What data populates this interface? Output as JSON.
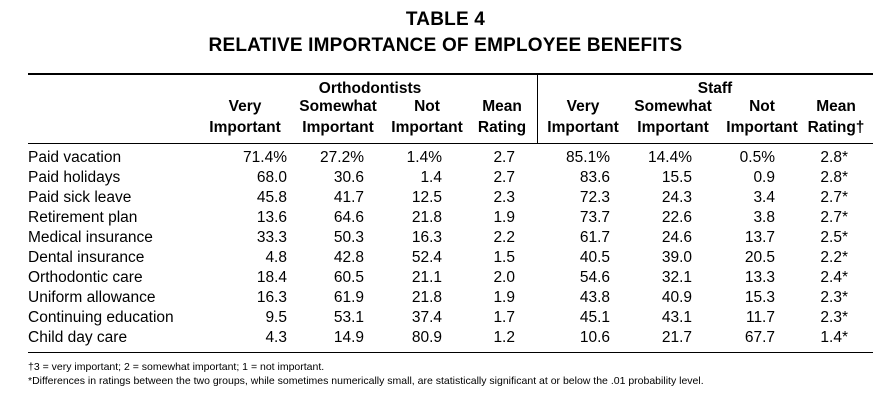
{
  "title": "TABLE 4",
  "subtitle": "RELATIVE IMPORTANCE OF EMPLOYEE BENEFITS",
  "groups": {
    "left": "Orthodontists",
    "right": "Staff"
  },
  "col_headers": {
    "very_1": "Very",
    "very_2": "Important",
    "some_1": "Somewhat",
    "some_2": "Important",
    "not_1": "Not",
    "not_2": "Important",
    "mean_1": "Mean",
    "mean_2": "Rating",
    "mean_staff_2": "Rating†"
  },
  "rows": [
    {
      "label": "Paid vacation",
      "o": [
        "71.4%",
        "27.2%",
        "1.4%",
        "2.7"
      ],
      "s": [
        "85.1%",
        "14.4%",
        "0.5%",
        "2.8*"
      ]
    },
    {
      "label": "Paid holidays",
      "o": [
        "68.0",
        "30.6",
        "1.4",
        "2.7"
      ],
      "s": [
        "83.6",
        "15.5",
        "0.9",
        "2.8*"
      ]
    },
    {
      "label": "Paid sick leave",
      "o": [
        "45.8",
        "41.7",
        "12.5",
        "2.3"
      ],
      "s": [
        "72.3",
        "24.3",
        "3.4",
        "2.7*"
      ]
    },
    {
      "label": "Retirement plan",
      "o": [
        "13.6",
        "64.6",
        "21.8",
        "1.9"
      ],
      "s": [
        "73.7",
        "22.6",
        "3.8",
        "2.7*"
      ]
    },
    {
      "label": "Medical insurance",
      "o": [
        "33.3",
        "50.3",
        "16.3",
        "2.2"
      ],
      "s": [
        "61.7",
        "24.6",
        "13.7",
        "2.5*"
      ]
    },
    {
      "label": "Dental insurance",
      "o": [
        "4.8",
        "42.8",
        "52.4",
        "1.5"
      ],
      "s": [
        "40.5",
        "39.0",
        "20.5",
        "2.2*"
      ]
    },
    {
      "label": "Orthodontic care",
      "o": [
        "18.4",
        "60.5",
        "21.1",
        "2.0"
      ],
      "s": [
        "54.6",
        "32.1",
        "13.3",
        "2.4*"
      ]
    },
    {
      "label": "Uniform allowance",
      "o": [
        "16.3",
        "61.9",
        "21.8",
        "1.9"
      ],
      "s": [
        "43.8",
        "40.9",
        "15.3",
        "2.3*"
      ]
    },
    {
      "label": "Continuing education",
      "o": [
        "9.5",
        "53.1",
        "37.4",
        "1.7"
      ],
      "s": [
        "45.1",
        "43.1",
        "11.7",
        "2.3*"
      ]
    },
    {
      "label": "Child day care",
      "o": [
        "4.3",
        "14.9",
        "80.9",
        "1.2"
      ],
      "s": [
        "10.6",
        "21.7",
        "67.7",
        "1.4*"
      ]
    }
  ],
  "footnotes": [
    "†3 = very important; 2 = somewhat important; 1 = not important.",
    "*Differences in ratings between the two groups, while sometimes numerically small, are statistically significant at or below the .01 probability level."
  ]
}
